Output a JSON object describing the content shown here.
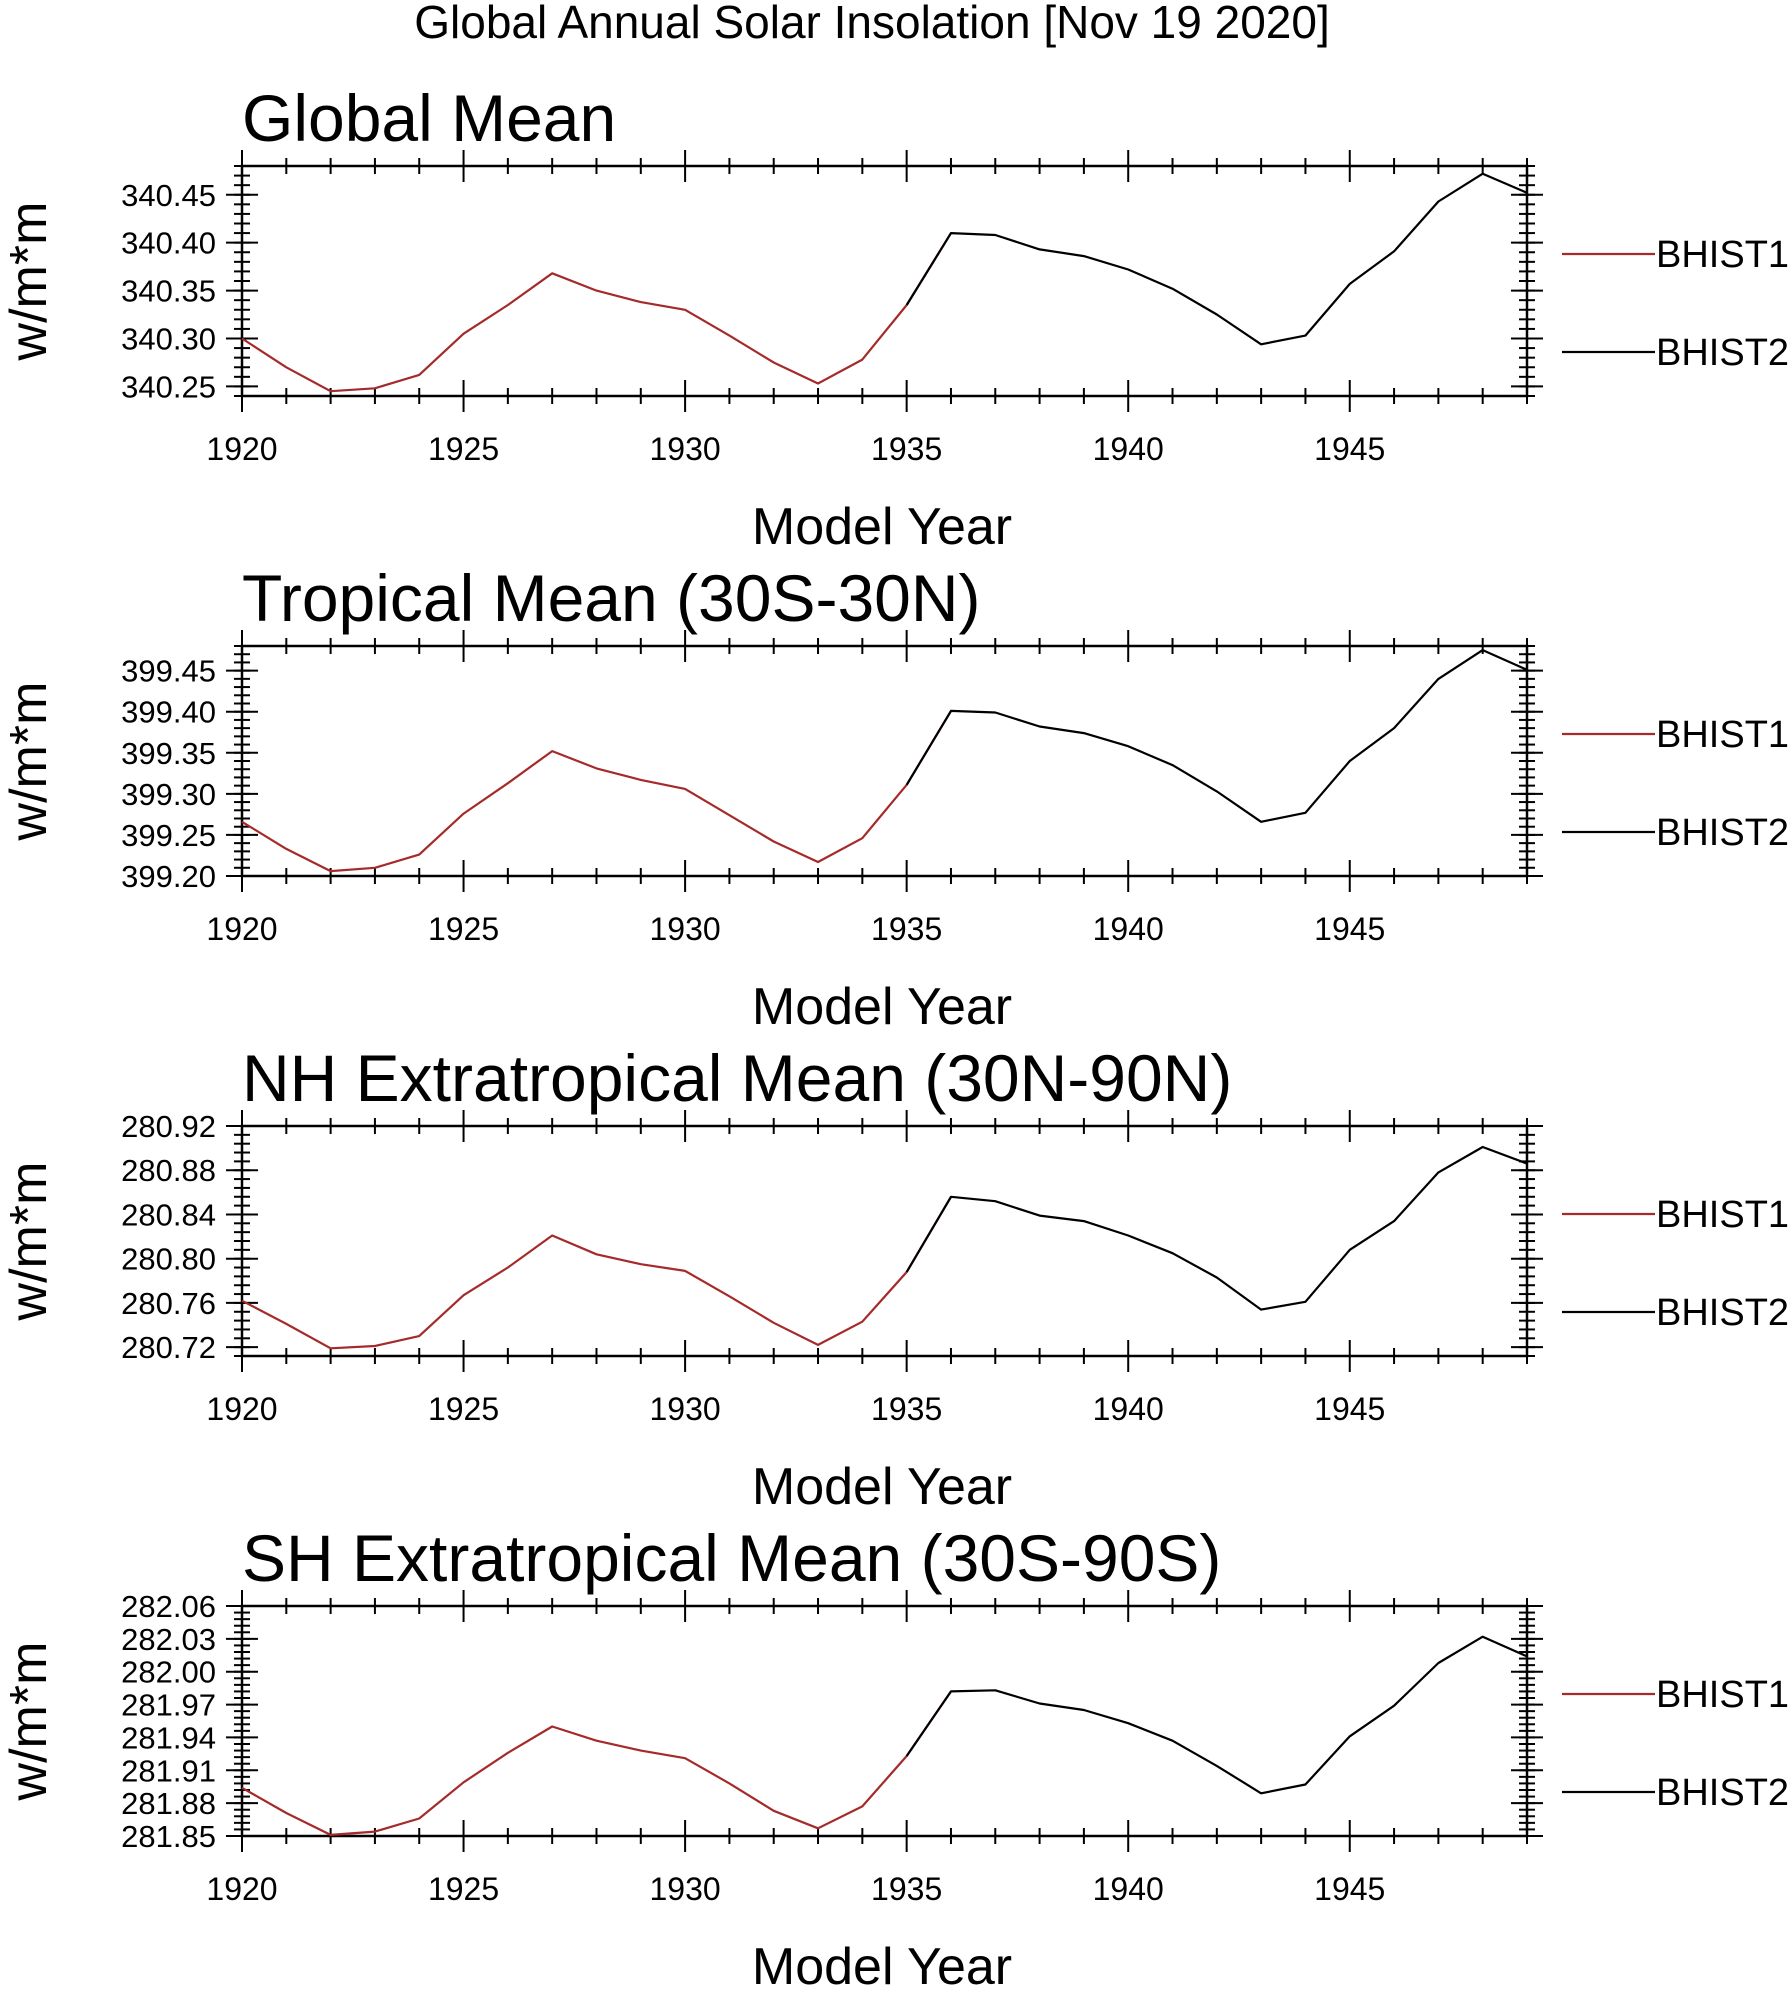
{
  "figure_title": "Global Annual Solar Insolation [Nov 19 2020]",
  "colors": {
    "BHIST1": "#a52a2a",
    "BHIST2": "#000000",
    "axis": "#000000"
  },
  "chart_data": [
    {
      "type": "line",
      "title": "Global Mean",
      "xlabel": "Model Year",
      "ylabel": "w/m*m",
      "xlim": [
        1920,
        1949
      ],
      "ylim": [
        340.24,
        340.48
      ],
      "x_ticks": [
        1920,
        1925,
        1930,
        1935,
        1940,
        1945
      ],
      "y_ticks": [
        "340.25",
        "340.30",
        "340.35",
        "340.40",
        "340.45"
      ],
      "legend_position": "right",
      "series": [
        {
          "name": "BHIST1",
          "color": "#a52a2a",
          "x": [
            1920,
            1921,
            1922,
            1923,
            1924,
            1925,
            1926,
            1927,
            1928,
            1929,
            1930,
            1931,
            1932,
            1933,
            1934,
            1935,
            1936
          ],
          "y": [
            340.3,
            340.27,
            340.245,
            340.248,
            340.262,
            340.305,
            340.335,
            340.368,
            340.35,
            340.338,
            340.33,
            340.303,
            340.275,
            340.253,
            340.278,
            340.335,
            340.41
          ]
        },
        {
          "name": "BHIST2",
          "color": "#000000",
          "x": [
            1935,
            1936,
            1937,
            1938,
            1939,
            1940,
            1941,
            1942,
            1943,
            1944,
            1945,
            1946,
            1947,
            1948,
            1949
          ],
          "y": [
            340.335,
            340.41,
            340.408,
            340.393,
            340.386,
            340.372,
            340.352,
            340.325,
            340.294,
            340.303,
            340.357,
            340.391,
            340.443,
            340.472,
            340.452
          ]
        }
      ]
    },
    {
      "type": "line",
      "title": "Tropical Mean (30S-30N)",
      "xlabel": "Model Year",
      "ylabel": "w/m*m",
      "xlim": [
        1920,
        1949
      ],
      "ylim": [
        399.2,
        399.48
      ],
      "x_ticks": [
        1920,
        1925,
        1930,
        1935,
        1940,
        1945
      ],
      "y_ticks": [
        "399.20",
        "399.25",
        "399.30",
        "399.35",
        "399.40",
        "399.45"
      ],
      "legend_position": "right",
      "series": [
        {
          "name": "BHIST1",
          "color": "#a52a2a",
          "x": [
            1920,
            1921,
            1922,
            1923,
            1924,
            1925,
            1926,
            1927,
            1928,
            1929,
            1930,
            1931,
            1932,
            1933,
            1934,
            1935,
            1936
          ],
          "y": [
            399.266,
            399.233,
            399.206,
            399.21,
            399.226,
            399.276,
            399.313,
            399.352,
            399.331,
            399.317,
            399.306,
            399.274,
            399.242,
            399.217,
            399.246,
            399.311,
            399.401
          ]
        },
        {
          "name": "BHIST2",
          "color": "#000000",
          "x": [
            1935,
            1936,
            1937,
            1938,
            1939,
            1940,
            1941,
            1942,
            1943,
            1944,
            1945,
            1946,
            1947,
            1948,
            1949
          ],
          "y": [
            399.311,
            399.401,
            399.399,
            399.382,
            399.374,
            399.358,
            399.335,
            399.303,
            399.266,
            399.277,
            399.34,
            399.38,
            399.44,
            399.475,
            399.451
          ]
        }
      ]
    },
    {
      "type": "line",
      "title": "NH Extratropical Mean (30N-90N)",
      "xlabel": "Model Year",
      "ylabel": "w/m*m",
      "xlim": [
        1920,
        1949
      ],
      "ylim": [
        280.712,
        280.92
      ],
      "x_ticks": [
        1920,
        1925,
        1930,
        1935,
        1940,
        1945
      ],
      "y_ticks": [
        "280.72",
        "280.76",
        "280.80",
        "280.84",
        "280.88",
        "280.92"
      ],
      "legend_position": "right",
      "series": [
        {
          "name": "BHIST1",
          "color": "#a52a2a",
          "x": [
            1920,
            1921,
            1922,
            1923,
            1924,
            1925,
            1926,
            1927,
            1928,
            1929,
            1930,
            1931,
            1932,
            1933,
            1934,
            1935,
            1936
          ],
          "y": [
            280.762,
            280.741,
            280.719,
            280.721,
            280.73,
            280.767,
            280.792,
            280.821,
            280.804,
            280.795,
            280.789,
            280.766,
            280.742,
            280.722,
            280.743,
            280.788,
            280.856
          ]
        },
        {
          "name": "BHIST2",
          "color": "#000000",
          "x": [
            1935,
            1936,
            1937,
            1938,
            1939,
            1940,
            1941,
            1942,
            1943,
            1944,
            1945,
            1946,
            1947,
            1948,
            1949
          ],
          "y": [
            280.788,
            280.856,
            280.852,
            280.839,
            280.834,
            280.821,
            280.805,
            280.783,
            280.754,
            280.761,
            280.808,
            280.834,
            280.878,
            280.901,
            280.886
          ]
        }
      ]
    },
    {
      "type": "line",
      "title": "SH Extratropical Mean (30S-90S)",
      "xlabel": "Model Year",
      "ylabel": "w/m*m",
      "xlim": [
        1920,
        1949
      ],
      "ylim": [
        281.85,
        282.06
      ],
      "x_ticks": [
        1920,
        1925,
        1930,
        1935,
        1940,
        1945
      ],
      "y_ticks": [
        "281.85",
        "281.88",
        "281.91",
        "281.94",
        "281.97",
        "282.00",
        "282.03",
        "282.06"
      ],
      "legend_position": "right",
      "series": [
        {
          "name": "BHIST1",
          "color": "#a52a2a",
          "x": [
            1920,
            1921,
            1922,
            1923,
            1924,
            1925,
            1926,
            1927,
            1928,
            1929,
            1930,
            1931,
            1932,
            1933,
            1934,
            1935,
            1936
          ],
          "y": [
            281.894,
            281.871,
            281.851,
            281.854,
            281.866,
            281.899,
            281.926,
            281.95,
            281.937,
            281.928,
            281.921,
            281.898,
            281.873,
            281.857,
            281.877,
            281.923,
            281.982
          ]
        },
        {
          "name": "BHIST2",
          "color": "#000000",
          "x": [
            1935,
            1936,
            1937,
            1938,
            1939,
            1940,
            1941,
            1942,
            1943,
            1944,
            1945,
            1946,
            1947,
            1948,
            1949
          ],
          "y": [
            281.923,
            281.982,
            281.983,
            281.971,
            281.965,
            281.953,
            281.937,
            281.914,
            281.889,
            281.897,
            281.941,
            281.969,
            282.008,
            282.032,
            282.014
          ]
        }
      ]
    }
  ]
}
